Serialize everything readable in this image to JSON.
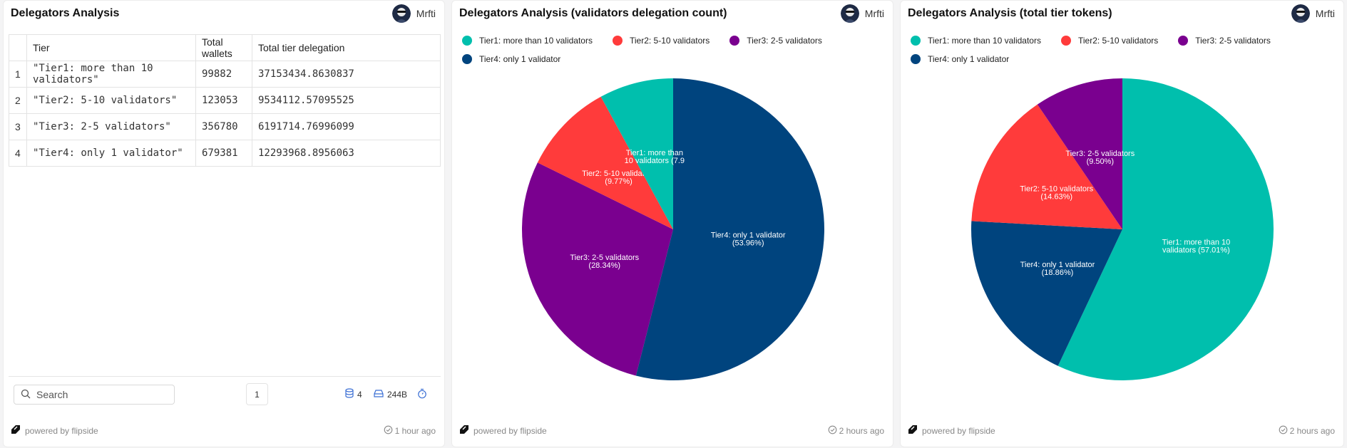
{
  "colors": {
    "tier1": "#00bfad",
    "tier2": "#ff3b3b",
    "tier3": "#7a008f",
    "tier4": "#00447e"
  },
  "table_panel": {
    "title": "Delegators Analysis",
    "author": "Mrfti",
    "columns": [
      "Tier",
      "Total wallets",
      "Total tier delegation"
    ],
    "rows": [
      {
        "index": "1",
        "tier": "\"Tier1: more than 10 validators\"",
        "wallets": "99882",
        "delegation": "37153434.8630837"
      },
      {
        "index": "2",
        "tier": "\"Tier2: 5-10 validators\"",
        "wallets": "123053",
        "delegation": "9534112.57095525"
      },
      {
        "index": "3",
        "tier": "\"Tier3: 2-5 validators\"",
        "wallets": "356780",
        "delegation": "6191714.76996099"
      },
      {
        "index": "4",
        "tier": "\"Tier4: only 1 validator\"",
        "wallets": "679381",
        "delegation": "12293968.8956063"
      }
    ],
    "search_placeholder": "Search",
    "page": "1",
    "row_count": "4",
    "size": "244B",
    "powered_by": "powered by flipside",
    "updated": "1 hour ago"
  },
  "count_panel": {
    "author": "Mrfti",
    "powered_by": "powered by flipside",
    "updated": "2 hours ago"
  },
  "tokens_panel": {
    "author": "Mrfti",
    "powered_by": "powered by flipside",
    "updated": "2 hours ago"
  },
  "chart_data": [
    {
      "type": "pie",
      "title": "Delegators Analysis (validators delegation count)",
      "legend": [
        "Tier1: more than 10 validators",
        "Tier2: 5-10 validators",
        "Tier3: 2-5 validators",
        "Tier4: only 1 validator"
      ],
      "legend_placement": "top-left",
      "slices": [
        {
          "label": "Tier4: only 1 validator",
          "value": 679381,
          "percent": "53.96%",
          "color_key": "tier4"
        },
        {
          "label": "Tier3: 2-5 validators",
          "value": 356780,
          "percent": "28.34%",
          "color_key": "tier3"
        },
        {
          "label": "Tier2: 5-10 validators",
          "value": 123053,
          "percent": "9.77%",
          "color_key": "tier2"
        },
        {
          "label": "Tier1: more than 10 validators",
          "value": 99882,
          "percent": "7.93%",
          "color_key": "tier1",
          "display_lines": [
            "Tier1: more than",
            "10 validators (7.9"
          ]
        }
      ]
    },
    {
      "type": "pie",
      "title": "Delegators Analysis (total tier tokens)",
      "legend": [
        "Tier1: more than 10 validators",
        "Tier2: 5-10 validators",
        "Tier3: 2-5 validators",
        "Tier4: only 1 validator"
      ],
      "legend_placement": "top-left",
      "slices": [
        {
          "label": "Tier1: more than 10 validators",
          "value": 37153434.8630837,
          "percent": "57.01%",
          "color_key": "tier1",
          "display_lines": [
            "Tier1: more than 10",
            "validators (57.01%)"
          ]
        },
        {
          "label": "Tier4: only 1 validator",
          "value": 12293968.8956063,
          "percent": "18.86%",
          "color_key": "tier4"
        },
        {
          "label": "Tier2: 5-10 validators",
          "value": 9534112.57095525,
          "percent": "14.63%",
          "color_key": "tier2"
        },
        {
          "label": "Tier3: 2-5 validators",
          "value": 6191714.76996099,
          "percent": "9.50%",
          "color_key": "tier3"
        }
      ]
    }
  ]
}
